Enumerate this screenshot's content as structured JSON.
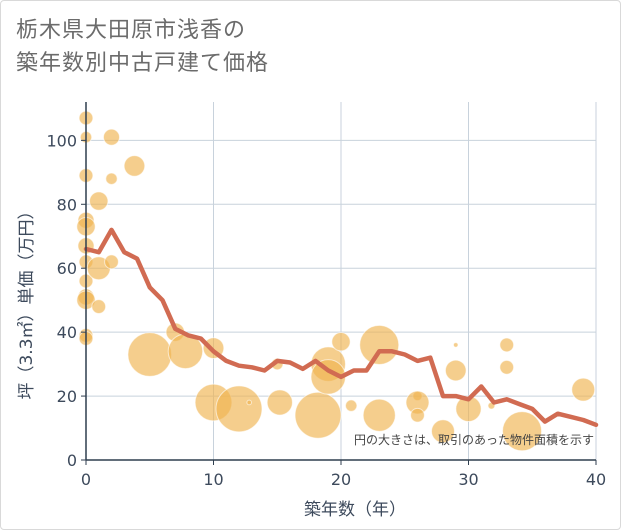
{
  "chart_data": {
    "type": "scatter",
    "title_lines": [
      "栃木県大田原市浅香の",
      "築年数別中古戸建て価格"
    ],
    "xlabel": "築年数（年）",
    "ylabel": "坪（3.3㎡）単価（万円）",
    "xlim": [
      0,
      40
    ],
    "ylim": [
      0,
      112
    ],
    "x_ticks": [
      0,
      10,
      20,
      30,
      40
    ],
    "y_ticks": [
      0,
      20,
      40,
      60,
      80,
      100
    ],
    "note": "円の大きさは、取引のあった物件面積を示す",
    "colors": {
      "bubble": "#f0b350",
      "line": "#d16b52",
      "grid": "#c8d2dc"
    },
    "bubbles": [
      {
        "x": 0,
        "y": 107,
        "size": 6
      },
      {
        "x": 0,
        "y": 101,
        "size": 5
      },
      {
        "x": 0,
        "y": 89,
        "size": 6
      },
      {
        "x": 0,
        "y": 75,
        "size": 7
      },
      {
        "x": 0,
        "y": 73,
        "size": 8
      },
      {
        "x": 0,
        "y": 67,
        "size": 7
      },
      {
        "x": 0,
        "y": 62,
        "size": 6
      },
      {
        "x": 0,
        "y": 56,
        "size": 6
      },
      {
        "x": 0,
        "y": 51,
        "size": 7
      },
      {
        "x": 0,
        "y": 50,
        "size": 8
      },
      {
        "x": 0,
        "y": 39,
        "size": 6
      },
      {
        "x": 0,
        "y": 38,
        "size": 6
      },
      {
        "x": 1,
        "y": 81,
        "size": 8
      },
      {
        "x": 1,
        "y": 60,
        "size": 10
      },
      {
        "x": 1,
        "y": 48,
        "size": 6
      },
      {
        "x": 2,
        "y": 101,
        "size": 7
      },
      {
        "x": 2,
        "y": 88,
        "size": 5
      },
      {
        "x": 2,
        "y": 62,
        "size": 6
      },
      {
        "x": 3.8,
        "y": 92,
        "size": 9
      },
      {
        "x": 5,
        "y": 33,
        "size": 19
      },
      {
        "x": 7,
        "y": 40,
        "size": 8
      },
      {
        "x": 7.8,
        "y": 34,
        "size": 15
      },
      {
        "x": 10,
        "y": 35,
        "size": 9
      },
      {
        "x": 10,
        "y": 18,
        "size": 16
      },
      {
        "x": 12,
        "y": 16,
        "size": 20
      },
      {
        "x": 12.8,
        "y": 18,
        "size": 2
      },
      {
        "x": 15,
        "y": 30,
        "size": 5
      },
      {
        "x": 15.2,
        "y": 18,
        "size": 11
      },
      {
        "x": 18.2,
        "y": 14,
        "size": 20
      },
      {
        "x": 19,
        "y": 30,
        "size": 15
      },
      {
        "x": 19,
        "y": 26,
        "size": 15
      },
      {
        "x": 20,
        "y": 37,
        "size": 8
      },
      {
        "x": 20.8,
        "y": 17,
        "size": 5
      },
      {
        "x": 23,
        "y": 36,
        "size": 17
      },
      {
        "x": 23,
        "y": 14,
        "size": 14
      },
      {
        "x": 26,
        "y": 20,
        "size": 4
      },
      {
        "x": 26,
        "y": 18,
        "size": 10
      },
      {
        "x": 26,
        "y": 14,
        "size": 6
      },
      {
        "x": 28,
        "y": 9,
        "size": 10
      },
      {
        "x": 29,
        "y": 36,
        "size": 2
      },
      {
        "x": 29,
        "y": 28,
        "size": 9
      },
      {
        "x": 30,
        "y": 16,
        "size": 11
      },
      {
        "x": 33,
        "y": 36,
        "size": 6
      },
      {
        "x": 33,
        "y": 29,
        "size": 6
      },
      {
        "x": 31.8,
        "y": 17,
        "size": 3
      },
      {
        "x": 34.2,
        "y": 9,
        "size": 17
      },
      {
        "x": 39,
        "y": 22,
        "size": 10
      }
    ],
    "line": {
      "x": [
        0,
        1,
        2,
        3,
        4,
        5,
        6,
        7,
        8,
        9,
        10,
        11,
        12,
        13,
        14,
        15,
        16,
        17,
        18,
        19,
        20,
        21,
        22,
        23,
        24,
        25,
        26,
        27,
        28,
        29,
        30,
        31,
        32,
        33,
        34,
        35,
        36,
        37,
        38,
        39,
        40
      ],
      "y": [
        66,
        65,
        72,
        65,
        63,
        54,
        50,
        41,
        39,
        38,
        34,
        31,
        29.5,
        29,
        28,
        31,
        30.5,
        28.5,
        31,
        28,
        26,
        28,
        28,
        34,
        34,
        33,
        31,
        32,
        20,
        20,
        19,
        23,
        18,
        19,
        17.5,
        16,
        12,
        14.5,
        13.5,
        12.5,
        11
      ]
    }
  }
}
